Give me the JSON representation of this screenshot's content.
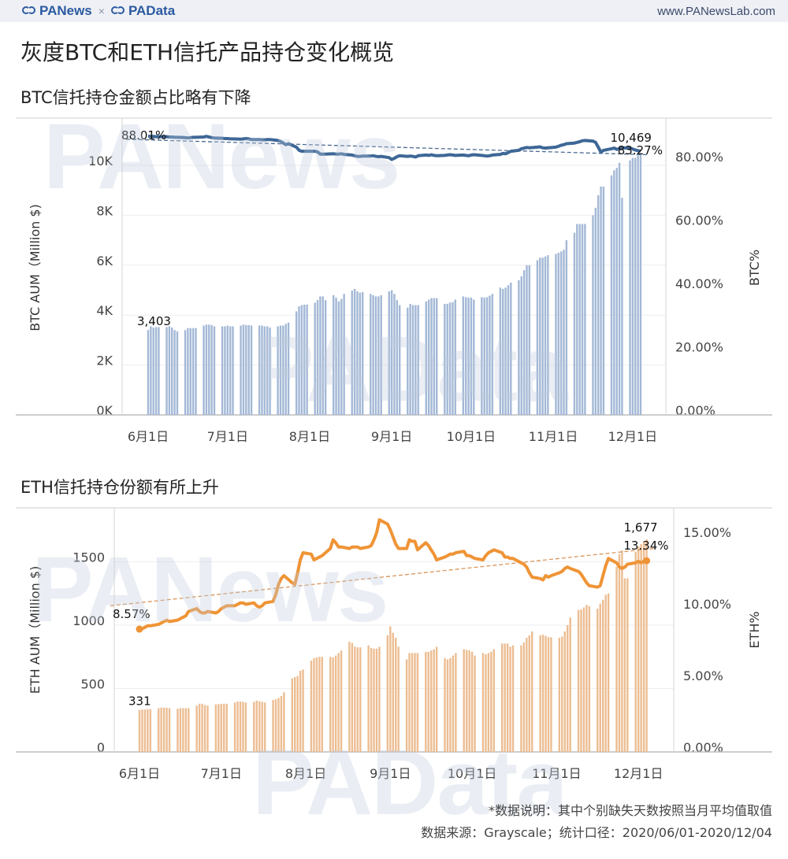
{
  "header": {
    "brand_left": "PANews",
    "brand_sep": "×",
    "brand_right": "PAData",
    "url": "www.PANewsLab.com"
  },
  "title": "灰度BTC和ETH信托产品持仓变化概览",
  "watermarks": [
    "PANews",
    "PAData"
  ],
  "footer": {
    "note": "*数据说明：其中个别缺失天数按照当月平均值取值",
    "source": "数据来源：Grayscale；统计口径：2020/06/01-2020/12/04"
  },
  "colors": {
    "btc_bar": "#a3b8d6",
    "btc_line": "#3e6796",
    "eth_bar": "#ecbd92",
    "eth_line": "#ef9436"
  },
  "chart_data": [
    {
      "type": "bar+line",
      "title": "BTC信托持仓金额占比略有下降",
      "date_range": [
        "2020-06-01",
        "2020-12-04"
      ],
      "x_frequency": "weekdays",
      "xticks": [
        "6月1日",
        "7月1日",
        "8月1日",
        "9月1日",
        "10月1日",
        "11月1日",
        "12月1日"
      ],
      "xtick_dates": [
        "2020-06-01",
        "2020-07-01",
        "2020-08-01",
        "2020-09-01",
        "2020-10-01",
        "2020-11-01",
        "2020-12-01"
      ],
      "ylabel_left": "BTC AUM（Million $)",
      "ylabel_right": "BTC%",
      "ylim_left": [
        0,
        11800
      ],
      "ylim_right": [
        0,
        94
      ],
      "yticks_left": [
        {
          "v": 0,
          "t": "0K"
        },
        {
          "v": 2000,
          "t": "2K"
        },
        {
          "v": 4000,
          "t": "4K"
        },
        {
          "v": 6000,
          "t": "6K"
        },
        {
          "v": 8000,
          "t": "8K"
        },
        {
          "v": 10000,
          "t": "10K"
        }
      ],
      "yticks_right": [
        {
          "v": 0,
          "t": "0.00%"
        },
        {
          "v": 20,
          "t": "20.00%"
        },
        {
          "v": 40,
          "t": "40.00%"
        },
        {
          "v": 60,
          "t": "60.00%"
        },
        {
          "v": 80,
          "t": "80.00%"
        }
      ],
      "grid": true,
      "bars": [
        3403,
        3550,
        3500,
        3520,
        3520,
        3520,
        3550,
        3500,
        3400,
        3350,
        3400,
        3480,
        3480,
        3480,
        3480,
        3580,
        3620,
        3620,
        3600,
        3550,
        3550,
        3550,
        3580,
        3550,
        3550,
        3580,
        3620,
        3600,
        3600,
        3580,
        3580,
        3580,
        3550,
        3550,
        3500,
        3550,
        3580,
        3580,
        3650,
        3700,
        4150,
        4350,
        4400,
        4420,
        4420,
        4500,
        4600,
        4750,
        4750,
        4600,
        4800,
        4700,
        4550,
        4650,
        4850,
        4980,
        5050,
        4950,
        4900,
        4920,
        4850,
        4800,
        4750,
        4750,
        4800,
        4950,
        5000,
        4850,
        4600,
        4400,
        4300,
        4450,
        4400,
        4400,
        4400,
        4550,
        4620,
        4680,
        4680,
        4680,
        4450,
        4450,
        4500,
        4520,
        4620,
        4750,
        4720,
        4700,
        4700,
        4620,
        4720,
        4700,
        4720,
        4780,
        4850,
        5100,
        5050,
        5100,
        5200,
        5300,
        5400,
        5550,
        5800,
        6000,
        6000,
        6200,
        6300,
        6300,
        6350,
        6400,
        6450,
        6500,
        6550,
        6620,
        7000,
        7300,
        7650,
        7650,
        7650,
        7650,
        8000,
        8300,
        8800,
        9150,
        9150,
        9600,
        9800,
        9900,
        10100,
        8700,
        10200,
        10300,
        10300,
        10400,
        10469
      ],
      "line": [
        88.01,
        87.9,
        87.9,
        87.8,
        87.8,
        87.8,
        87.7,
        87.7,
        87.6,
        87.6,
        87.5,
        87.4,
        87.5,
        87.6,
        87.6,
        87.7,
        87.9,
        87.7,
        87.5,
        87.4,
        87.3,
        87.2,
        87.2,
        87.1,
        87.1,
        87.0,
        87.1,
        87.2,
        87.1,
        86.9,
        86.9,
        86.8,
        86.8,
        86.9,
        86.9,
        86.6,
        86.3,
        85.8,
        85.3,
        85.6,
        84.5,
        83.5,
        83.2,
        83.2,
        83.2,
        83.2,
        83.0,
        82.3,
        82.3,
        82.3,
        82.4,
        82.3,
        82.3,
        82.4,
        82.2,
        82.0,
        81.8,
        81.6,
        81.6,
        81.7,
        81.7,
        81.8,
        81.6,
        81.5,
        81.6,
        81.2,
        80.6,
        81.0,
        81.5,
        81.8,
        81.6,
        81.7,
        81.6,
        81.4,
        81.8,
        82.0,
        81.9,
        82.1,
        81.9,
        81.8,
        81.9,
        82.0,
        82.1,
        82.0,
        81.9,
        82.0,
        81.9,
        81.8,
        82.0,
        82.1,
        81.9,
        81.8,
        81.7,
        81.8,
        82.0,
        82.2,
        82.5,
        82.4,
        82.8,
        83.2,
        83.5,
        84.0,
        84.2,
        84.4,
        84.3,
        84.5,
        84.6,
        84.3,
        84.2,
        84.3,
        84.5,
        84.8,
        85.1,
        85.3,
        85.6,
        85.8,
        86.0,
        86.2,
        86.5,
        86.6,
        86.4,
        86.0,
        84.5,
        82.9,
        83.5,
        84.0,
        84.2,
        83.8,
        84.0,
        84.3,
        84.2,
        83.9,
        83.6,
        83.4,
        83.27
      ],
      "trendline": [
        87.0,
        82.1
      ],
      "labels": {
        "bar_start": "3,403",
        "bar_end": "10,469",
        "line_start": "88.01%",
        "line_end": "83.27%"
      },
      "markers": false
    },
    {
      "type": "bar+line",
      "title": "ETH信托持仓份额有所上升",
      "date_range": [
        "2020-06-01",
        "2020-12-04"
      ],
      "x_frequency": "weekdays",
      "xticks": [
        "6月1日",
        "7月1日",
        "8月1日",
        "9月1日",
        "10月1日",
        "11月1日",
        "12月1日"
      ],
      "xtick_dates": [
        "2020-06-01",
        "2020-07-01",
        "2020-08-01",
        "2020-09-01",
        "2020-10-01",
        "2020-11-01",
        "2020-12-01"
      ],
      "ylabel_left": "ETH AUM（Million $)",
      "ylabel_right": "ETH%",
      "ylim_left": [
        0,
        1925
      ],
      "ylim_right": [
        0,
        17
      ],
      "yticks_left": [
        {
          "v": 0,
          "t": "0"
        },
        {
          "v": 500,
          "t": "500"
        },
        {
          "v": 1000,
          "t": "1000"
        },
        {
          "v": 1500,
          "t": "1500"
        }
      ],
      "yticks_right": [
        {
          "v": 0,
          "t": "0.00%"
        },
        {
          "v": 5,
          "t": "5.00%"
        },
        {
          "v": 10,
          "t": "10.00%"
        },
        {
          "v": 15,
          "t": "15.00%"
        }
      ],
      "grid": true,
      "bars": [
        331,
        335,
        335,
        338,
        338,
        345,
        350,
        350,
        348,
        345,
        340,
        345,
        345,
        345,
        345,
        365,
        380,
        380,
        370,
        365,
        375,
        378,
        378,
        380,
        380,
        390,
        398,
        398,
        395,
        390,
        395,
        405,
        400,
        395,
        390,
        410,
        415,
        425,
        440,
        470,
        580,
        590,
        600,
        640,
        650,
        720,
        740,
        745,
        750,
        750,
        750,
        745,
        760,
        780,
        800,
        870,
        860,
        830,
        825,
        825,
        840,
        820,
        815,
        815,
        830,
        920,
        990,
        940,
        900,
        830,
        730,
        780,
        780,
        780,
        780,
        790,
        790,
        800,
        810,
        830,
        740,
        730,
        740,
        760,
        780,
        810,
        805,
        800,
        790,
        760,
        780,
        770,
        780,
        790,
        810,
        855,
        855,
        855,
        830,
        840,
        840,
        865,
        900,
        920,
        950,
        920,
        925,
        915,
        905,
        905,
        900,
        910,
        950,
        1000,
        1060,
        1120,
        1125,
        1140,
        1160,
        1150,
        1130,
        1170,
        1200,
        1240,
        1250,
        1460,
        1560,
        1590,
        1370,
        1370,
        1580,
        1620,
        1640,
        1660,
        1677
      ],
      "line": [
        8.57,
        8.6,
        8.7,
        8.8,
        8.8,
        8.9,
        9.0,
        9.1,
        9.2,
        9.1,
        9.2,
        9.3,
        9.4,
        9.5,
        9.8,
        10.0,
        9.8,
        9.7,
        9.7,
        9.8,
        9.7,
        9.8,
        10.0,
        10.1,
        10.2,
        10.2,
        10.3,
        10.4,
        10.4,
        10.3,
        10.4,
        10.2,
        10.1,
        10.2,
        10.4,
        10.5,
        11.0,
        11.7,
        12.1,
        12.3,
        11.8,
        11.7,
        12.5,
        13.4,
        13.9,
        13.8,
        13.4,
        13.5,
        13.6,
        13.7,
        14.2,
        14.8,
        14.6,
        14.3,
        14.3,
        14.2,
        14.3,
        14.3,
        14.3,
        14.2,
        14.3,
        14.4,
        14.8,
        15.3,
        16.2,
        15.9,
        15.5,
        15.0,
        14.5,
        14.2,
        14.2,
        14.8,
        14.7,
        14.7,
        14.1,
        14.6,
        14.4,
        14.1,
        13.8,
        13.4,
        13.6,
        13.7,
        13.8,
        13.8,
        13.9,
        14.0,
        13.7,
        13.7,
        13.6,
        13.5,
        13.4,
        13.7,
        13.9,
        14.0,
        14.1,
        13.9,
        13.6,
        13.6,
        13.5,
        13.5,
        13.2,
        13.1,
        12.9,
        12.5,
        12.2,
        12.1,
        12.0,
        12.3,
        12.2,
        12.3,
        12.5,
        12.6,
        12.8,
        12.9,
        12.8,
        12.6,
        12.4,
        12.1,
        11.8,
        11.6,
        11.5,
        11.6,
        12.3,
        13.0,
        13.5,
        13.2,
        12.9,
        12.8,
        12.9,
        13.1,
        13.2,
        13.3,
        13.2,
        13.3,
        13.34
      ],
      "trendline": [
        10.2,
        14.2
      ],
      "labels": {
        "bar_start": "331",
        "bar_end": "1,677",
        "line_start": "8.57%",
        "line_end": "13.34%"
      },
      "markers": true
    }
  ]
}
